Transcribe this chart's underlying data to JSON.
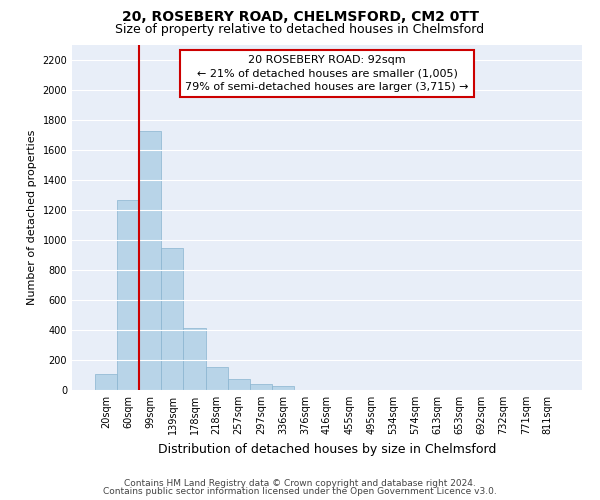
{
  "title": "20, ROSEBERY ROAD, CHELMSFORD, CM2 0TT",
  "subtitle": "Size of property relative to detached houses in Chelmsford",
  "xlabel": "Distribution of detached houses by size in Chelmsford",
  "ylabel": "Number of detached properties",
  "bar_labels": [
    "20sqm",
    "60sqm",
    "99sqm",
    "139sqm",
    "178sqm",
    "218sqm",
    "257sqm",
    "297sqm",
    "336sqm",
    "376sqm",
    "416sqm",
    "455sqm",
    "495sqm",
    "534sqm",
    "574sqm",
    "613sqm",
    "653sqm",
    "692sqm",
    "732sqm",
    "771sqm",
    "811sqm"
  ],
  "bar_heights": [
    110,
    1270,
    1730,
    950,
    415,
    155,
    75,
    42,
    25,
    0,
    0,
    0,
    0,
    0,
    0,
    0,
    0,
    0,
    0,
    0,
    0
  ],
  "bar_color": "#b8d4e8",
  "bar_edge_color": "#89b4d0",
  "background_color": "#e8eef8",
  "grid_color": "#ffffff",
  "ylim": [
    0,
    2300
  ],
  "yticks": [
    0,
    200,
    400,
    600,
    800,
    1000,
    1200,
    1400,
    1600,
    1800,
    2000,
    2200
  ],
  "property_bar_index": 2,
  "annotation_text_line1": "20 ROSEBERY ROAD: 92sqm",
  "annotation_text_line2": "← 21% of detached houses are smaller (1,005)",
  "annotation_text_line3": "79% of semi-detached houses are larger (3,715) →",
  "footer_line1": "Contains HM Land Registry data © Crown copyright and database right 2024.",
  "footer_line2": "Contains public sector information licensed under the Open Government Licence v3.0.",
  "annotation_box_color": "#ffffff",
  "annotation_border_color": "#cc0000",
  "vline_color": "#cc0000",
  "title_fontsize": 10,
  "subtitle_fontsize": 9,
  "ylabel_fontsize": 8,
  "xlabel_fontsize": 9,
  "tick_fontsize": 7,
  "footer_fontsize": 6.5,
  "annot_fontsize": 8
}
